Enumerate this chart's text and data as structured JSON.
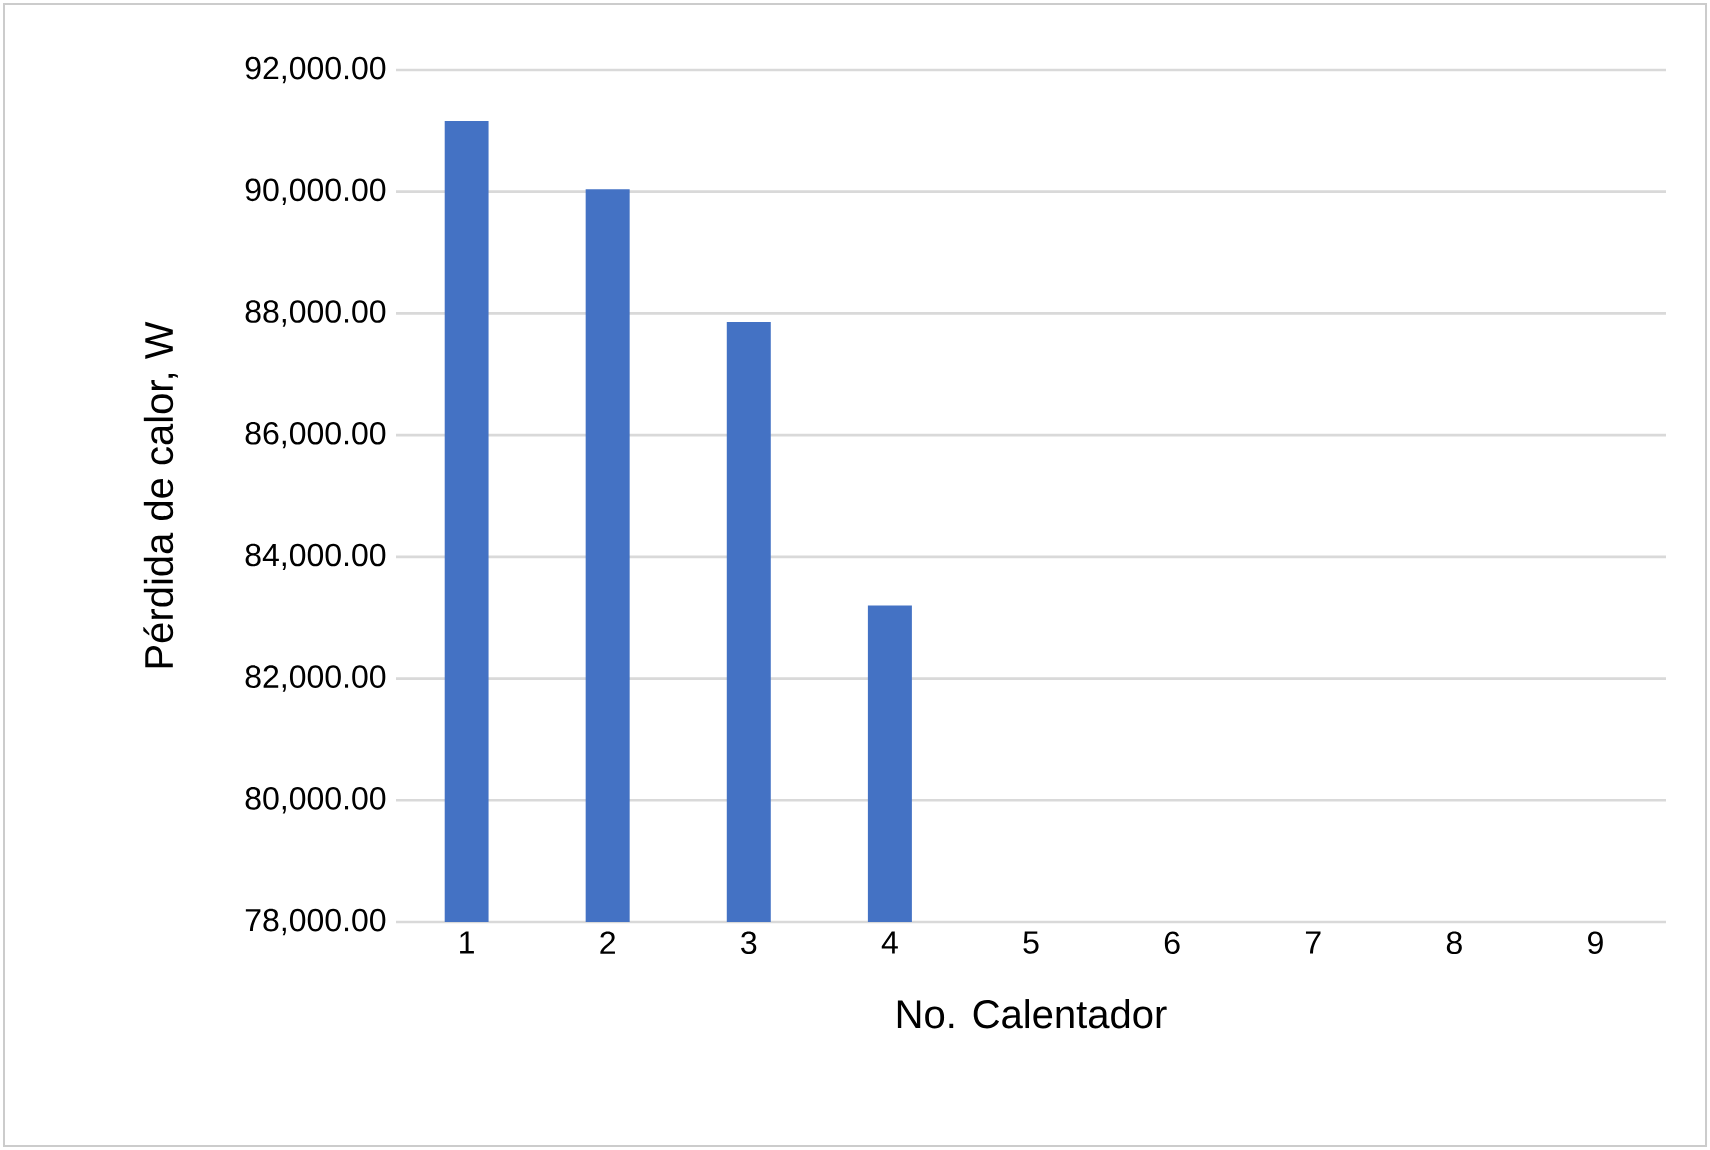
{
  "chart_data": {
    "type": "bar",
    "xlabel": "No. Calentador",
    "ylabel": "Pérdida de calor, W",
    "categories": [
      "1",
      "2",
      "3",
      "4",
      "5",
      "6",
      "7",
      "8",
      "9"
    ],
    "values": [
      91160,
      90040,
      87860,
      83200,
      null,
      null,
      null,
      null,
      null
    ],
    "color": "#4472c4",
    "ylim": [
      78000,
      92000
    ],
    "yticks": [
      {
        "value": 78000,
        "label": "78,000.00"
      },
      {
        "value": 80000,
        "label": "80,000.00"
      },
      {
        "value": 82000,
        "label": "82,000.00"
      },
      {
        "value": 84000,
        "label": "84,000.00"
      },
      {
        "value": 86000,
        "label": "86,000.00"
      },
      {
        "value": 88000,
        "label": "88,000.00"
      },
      {
        "value": 90000,
        "label": "90,000.00"
      },
      {
        "value": 92000,
        "label": "92,000.00"
      }
    ],
    "grid": "y"
  }
}
